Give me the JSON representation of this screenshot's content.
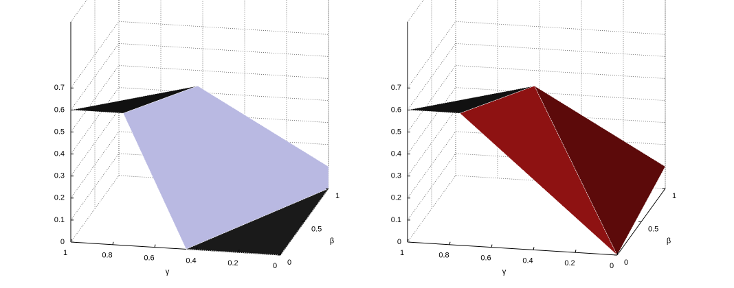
{
  "chart_data": [
    {
      "type": "surface3d",
      "xlabel": "γ",
      "ylabel": "β",
      "xlim": [
        0,
        1
      ],
      "ylim": [
        0,
        1
      ],
      "zlim": [
        0,
        1
      ],
      "xticks": [
        0,
        0.2,
        0.4,
        0.6,
        0.8,
        1
      ],
      "yticks": [
        0,
        0.5,
        1
      ],
      "zticks": [
        0,
        0.1,
        0.2,
        0.3,
        0.4,
        0.5,
        0.6,
        0.7
      ],
      "grid": true,
      "faces": [
        {
          "color": "#111111",
          "vertices": [
            [
              1,
              0,
              0.6
            ],
            [
              0.75,
              0,
              0.6
            ],
            [
              0.5,
              0.46,
              0.6
            ]
          ]
        },
        {
          "color": "#b9b9e2",
          "vertices": [
            [
              0.75,
              0,
              0.6
            ],
            [
              0.5,
              0.46,
              0.6
            ],
            [
              0,
              1,
              0.1
            ],
            [
              0,
              1,
              0
            ],
            [
              0.45,
              0,
              0
            ]
          ]
        },
        {
          "color": "#1a1a1a",
          "vertices": [
            [
              0.45,
              0,
              0
            ],
            [
              0,
              1,
              0
            ],
            [
              0,
              0,
              0
            ]
          ]
        }
      ]
    },
    {
      "type": "surface3d",
      "xlabel": "γ",
      "ylabel": "β",
      "xlim": [
        0,
        1
      ],
      "ylim": [
        0,
        1
      ],
      "zlim": [
        0,
        1
      ],
      "xticks": [
        0,
        0.2,
        0.4,
        0.6,
        0.8,
        1
      ],
      "yticks": [
        0,
        0.5,
        1
      ],
      "zticks": [
        0,
        0.1,
        0.2,
        0.3,
        0.4,
        0.5,
        0.6,
        0.7
      ],
      "grid": true,
      "faces": [
        {
          "color": "#111111",
          "vertices": [
            [
              1,
              0,
              0.6
            ],
            [
              0.75,
              0,
              0.6
            ],
            [
              0.5,
              0.46,
              0.6
            ]
          ]
        },
        {
          "color": "#8e1212",
          "vertices": [
            [
              0.75,
              0,
              0.6
            ],
            [
              0.5,
              0.46,
              0.6
            ],
            [
              0,
              0,
              0
            ]
          ]
        },
        {
          "color": "#5c0a0a",
          "vertices": [
            [
              0.5,
              0.46,
              0.6
            ],
            [
              0,
              1,
              0.1
            ],
            [
              0,
              0,
              0
            ]
          ]
        }
      ]
    }
  ]
}
